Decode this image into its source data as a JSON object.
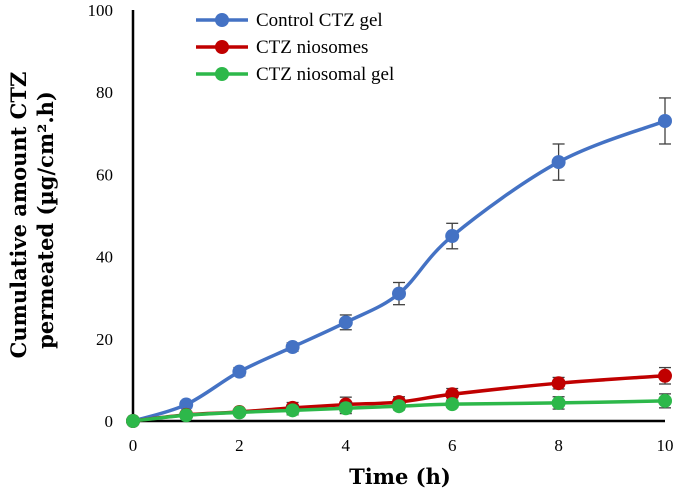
{
  "chart_data": {
    "type": "line",
    "title": "",
    "xlabel": "Time (h)",
    "ylabel_line1": "Cumulative amount CTZ",
    "ylabel_line2": "permeated (µg/cm².h)",
    "xlim": [
      0,
      10
    ],
    "ylim": [
      0,
      100
    ],
    "x_ticks": [
      "0",
      "2",
      "4",
      "6",
      "8",
      "10"
    ],
    "y_ticks": [
      "0",
      "20",
      "40",
      "60",
      "80",
      "100"
    ],
    "legend_position": "top-left",
    "x": [
      0,
      1,
      2,
      3,
      4,
      5,
      6,
      8,
      10
    ],
    "series": [
      {
        "name": "Control CTZ gel",
        "color": "#4472C4",
        "values": [
          0,
          4,
          12,
          18,
          24,
          31,
          45,
          63,
          73
        ],
        "errors": [
          0,
          0.8,
          1.0,
          1.0,
          1.8,
          2.7,
          3.1,
          4.4,
          5.6
        ]
      },
      {
        "name": "CTZ niosomes",
        "color": "#C00000",
        "values": [
          0,
          1.5,
          2.2,
          3.2,
          4.0,
          4.6,
          6.5,
          9.2,
          11.0
        ],
        "errors": [
          0,
          0.5,
          0.6,
          1.3,
          1.8,
          1.3,
          1.4,
          1.4,
          2.0
        ]
      },
      {
        "name": "CTZ niosomal gel",
        "color": "#2DB84A",
        "values": [
          0,
          1.4,
          2.1,
          2.6,
          3.1,
          3.6,
          4.1,
          4.4,
          4.9
        ],
        "errors": [
          0,
          0.4,
          0.6,
          1.1,
          1.3,
          0.9,
          0.8,
          1.5,
          1.7
        ]
      }
    ]
  }
}
